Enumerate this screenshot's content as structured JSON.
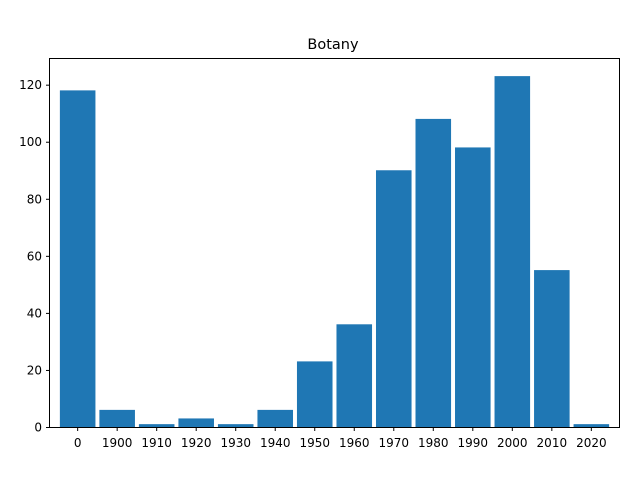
{
  "chart_data": {
    "type": "bar",
    "title": "Botany",
    "xlabel": "",
    "ylabel": "",
    "categories": [
      "0",
      "1900",
      "1910",
      "1920",
      "1930",
      "1940",
      "1950",
      "1960",
      "1970",
      "1980",
      "1990",
      "2000",
      "2010",
      "2020"
    ],
    "values": [
      118,
      6,
      1,
      3,
      1,
      6,
      23,
      36,
      90,
      108,
      98,
      123,
      55,
      1
    ],
    "ylim": [
      0,
      129
    ],
    "yticks": [
      0,
      20,
      40,
      60,
      80,
      100,
      120
    ],
    "grid": false,
    "legend": "none",
    "bar_color": "#1f77b4"
  }
}
